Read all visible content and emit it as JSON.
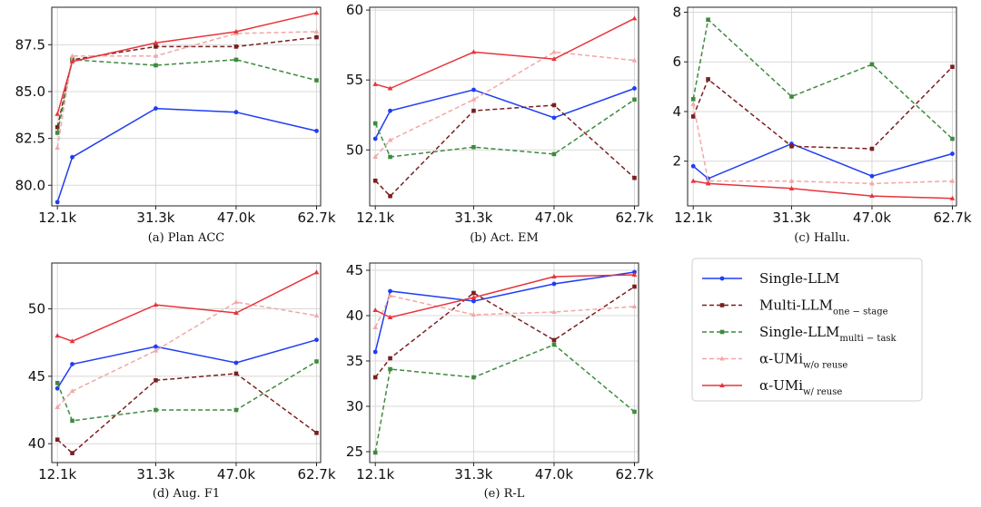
{
  "chart_data": [
    {
      "id": "a",
      "type": "line",
      "caption": "(a) Plan ACC",
      "x_ticks": [
        12.1,
        31.3,
        47.0,
        62.7
      ],
      "x_tick_labels": [
        "12.1k",
        "31.3k",
        "47.0k",
        "62.7k"
      ],
      "xlim": [
        11.0,
        63.5
      ],
      "ylim": [
        78.9,
        89.5
      ],
      "y_ticks": [
        80.0,
        82.5,
        85.0,
        87.5
      ],
      "y_tick_labels": [
        "80.0",
        "82.5",
        "85.0",
        "87.5"
      ],
      "x": [
        12.1,
        15.0,
        31.3,
        47.0,
        62.7
      ],
      "series": [
        {
          "key": "single",
          "x": [
            12.1,
            15.0,
            31.3,
            47.0,
            62.7
          ],
          "values": [
            79.1,
            81.5,
            84.1,
            83.9,
            82.9
          ]
        },
        {
          "key": "multi_stage",
          "values": [
            83.1,
            86.7,
            87.4,
            87.4,
            87.9
          ]
        },
        {
          "key": "multitask",
          "values": [
            82.8,
            86.7,
            86.4,
            86.7,
            85.6
          ]
        },
        {
          "key": "wo_reuse",
          "values": [
            82.0,
            86.9,
            86.9,
            88.1,
            88.2
          ]
        },
        {
          "key": "w_reuse",
          "values": [
            83.8,
            86.6,
            87.6,
            88.2,
            89.2
          ]
        }
      ]
    },
    {
      "id": "b",
      "type": "line",
      "caption": "(b) Act. EM",
      "x_ticks": [
        12.1,
        31.3,
        47.0,
        62.7
      ],
      "x_tick_labels": [
        "12.1k",
        "31.3k",
        "47.0k",
        "62.7k"
      ],
      "xlim": [
        11.0,
        63.5
      ],
      "ylim": [
        46.0,
        60.2
      ],
      "y_ticks": [
        50,
        55,
        60
      ],
      "y_tick_labels": [
        "50",
        "55",
        "60"
      ],
      "x": [
        12.1,
        15.0,
        31.3,
        47.0,
        62.7
      ],
      "series": [
        {
          "key": "single",
          "values": [
            50.8,
            52.8,
            54.3,
            52.3,
            54.4
          ]
        },
        {
          "key": "multi_stage",
          "values": [
            47.8,
            46.7,
            52.8,
            53.2,
            48.0
          ]
        },
        {
          "key": "multitask",
          "values": [
            51.9,
            49.5,
            50.2,
            49.7,
            53.6
          ]
        },
        {
          "key": "wo_reuse",
          "values": [
            49.5,
            50.7,
            53.6,
            57.0,
            56.4
          ]
        },
        {
          "key": "w_reuse",
          "values": [
            54.7,
            54.4,
            57.0,
            56.5,
            59.4
          ]
        }
      ]
    },
    {
      "id": "c",
      "type": "line",
      "caption": "(c) Hallu.",
      "x_ticks": [
        12.1,
        31.3,
        47.0,
        62.7
      ],
      "x_tick_labels": [
        "12.1k",
        "31.3k",
        "47.0k",
        "62.7k"
      ],
      "xlim": [
        11.0,
        63.5
      ],
      "ylim": [
        0.2,
        8.2
      ],
      "y_ticks": [
        2,
        4,
        6,
        8
      ],
      "y_tick_labels": [
        "2",
        "4",
        "6",
        "8"
      ],
      "x": [
        12.1,
        15.0,
        31.3,
        47.0,
        62.7
      ],
      "series": [
        {
          "key": "single",
          "values": [
            1.8,
            1.3,
            2.7,
            1.4,
            2.3
          ]
        },
        {
          "key": "multi_stage",
          "values": [
            3.8,
            5.3,
            2.6,
            2.5,
            5.8
          ]
        },
        {
          "key": "multitask",
          "values": [
            4.5,
            7.7,
            4.6,
            5.9,
            2.9
          ]
        },
        {
          "key": "wo_reuse",
          "values": [
            4.3,
            1.2,
            1.2,
            1.1,
            1.2
          ]
        },
        {
          "key": "w_reuse",
          "values": [
            1.2,
            1.1,
            0.9,
            0.6,
            0.5
          ]
        }
      ]
    },
    {
      "id": "d",
      "type": "line",
      "caption": "(d) Aug. F1",
      "x_ticks": [
        12.1,
        31.3,
        47.0,
        62.7
      ],
      "x_tick_labels": [
        "12.1k",
        "31.3k",
        "47.0k",
        "62.7k"
      ],
      "xlim": [
        11.0,
        63.5
      ],
      "ylim": [
        38.6,
        53.4
      ],
      "y_ticks": [
        40,
        45,
        50
      ],
      "y_tick_labels": [
        "40",
        "45",
        "50"
      ],
      "x": [
        12.1,
        15.0,
        31.3,
        47.0,
        62.7
      ],
      "series": [
        {
          "key": "single",
          "values": [
            44.1,
            45.9,
            47.2,
            46.0,
            47.7
          ]
        },
        {
          "key": "multi_stage",
          "values": [
            40.3,
            39.3,
            44.7,
            45.2,
            40.8
          ]
        },
        {
          "key": "multitask",
          "values": [
            44.5,
            41.7,
            42.5,
            42.5,
            46.1
          ]
        },
        {
          "key": "wo_reuse",
          "values": [
            42.7,
            43.9,
            46.9,
            50.5,
            49.5
          ]
        },
        {
          "key": "w_reuse",
          "values": [
            48.0,
            47.6,
            50.3,
            49.7,
            52.7
          ]
        }
      ]
    },
    {
      "id": "e",
      "type": "line",
      "caption": "(e) R-L",
      "x_ticks": [
        12.1,
        31.3,
        47.0,
        62.7
      ],
      "x_tick_labels": [
        "12.1k",
        "31.3k",
        "47.0k",
        "62.7k"
      ],
      "xlim": [
        11.0,
        63.5
      ],
      "ylim": [
        23.8,
        45.8
      ],
      "y_ticks": [
        25,
        30,
        35,
        40,
        45
      ],
      "y_tick_labels": [
        "25",
        "30",
        "35",
        "40",
        "45"
      ],
      "x": [
        12.1,
        15.0,
        31.3,
        47.0,
        62.7
      ],
      "series": [
        {
          "key": "single",
          "values": [
            36.0,
            42.7,
            41.6,
            43.5,
            44.8
          ]
        },
        {
          "key": "multi_stage",
          "values": [
            33.2,
            35.3,
            42.5,
            37.3,
            43.2
          ]
        },
        {
          "key": "multitask",
          "values": [
            24.9,
            34.1,
            33.2,
            36.8,
            29.4
          ]
        },
        {
          "key": "wo_reuse",
          "values": [
            38.7,
            42.2,
            40.1,
            40.4,
            41.0
          ]
        },
        {
          "key": "w_reuse",
          "values": [
            40.6,
            39.8,
            42.0,
            44.3,
            44.5
          ]
        }
      ]
    }
  ],
  "legend": [
    {
      "key": "single",
      "base": "Single-LLM",
      "sub": "",
      "color": "#1f3df5",
      "dash": "solid",
      "marker": "circle"
    },
    {
      "key": "multi_stage",
      "base": "Multi-LLM",
      "sub": "one − stage",
      "color": "#7a1f1f",
      "dash": "dashed",
      "marker": "square"
    },
    {
      "key": "multitask",
      "base": "Single-LLM",
      "sub": "multi − task",
      "color": "#3f8a3f",
      "dash": "dashed",
      "marker": "square"
    },
    {
      "key": "wo_reuse",
      "base": "α-UMi",
      "sub": "w/o reuse",
      "color": "#f2a7a7",
      "dash": "dashed",
      "marker": "triangle"
    },
    {
      "key": "w_reuse",
      "base": "α-UMi",
      "sub": "w/ reuse",
      "color": "#e8333a",
      "dash": "solid",
      "marker": "triangle"
    }
  ]
}
